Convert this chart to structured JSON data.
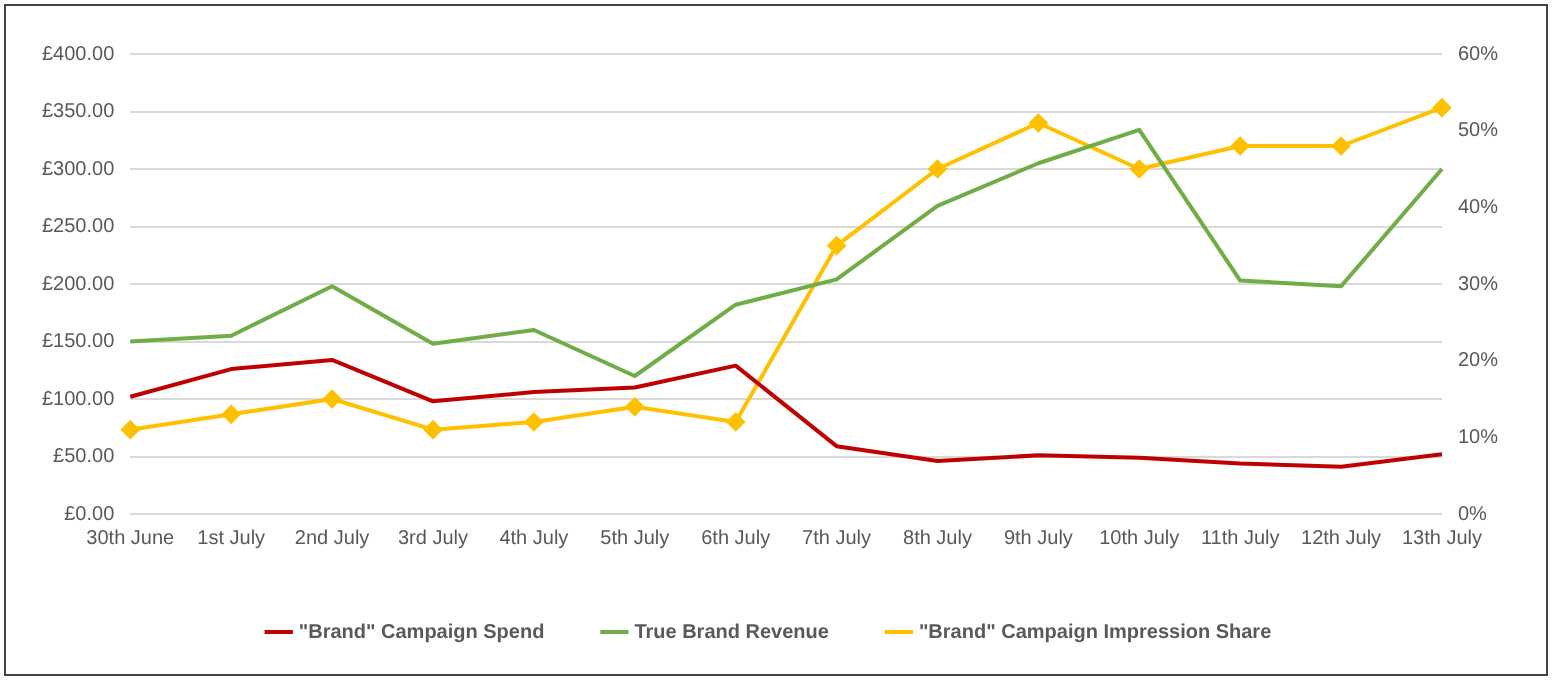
{
  "chart_data": {
    "type": "line",
    "categories": [
      "30th June",
      "1st July",
      "2nd July",
      "3rd July",
      "4th July",
      "5th July",
      "6th July",
      "7th July",
      "8th July",
      "9th July",
      "10th July",
      "11th July",
      "12th July",
      "13th July"
    ],
    "series": [
      {
        "name": "\"Brand\" Campaign Spend",
        "color": "#c00000",
        "marker": "none",
        "values": [
          102,
          126,
          134,
          98,
          106,
          110,
          129,
          59,
          46,
          51,
          49,
          44,
          41,
          52
        ]
      },
      {
        "name": "True Brand Revenue",
        "color": "#70ad47",
        "marker": "none",
        "values": [
          150,
          155,
          198,
          148,
          160,
          120,
          182,
          204,
          268,
          305,
          334,
          203,
          198,
          300
        ]
      },
      {
        "name": "\"Brand\" Campaign Impression Share",
        "color": "#ffc000",
        "marker": "diamond",
        "axis": "y2",
        "values": [
          11,
          13,
          15,
          11,
          12,
          14,
          12,
          35,
          45,
          51,
          45,
          48,
          48,
          53
        ]
      }
    ],
    "ylim": [
      0,
      400
    ],
    "yticks": [
      {
        "value": 0,
        "label": "£0.00"
      },
      {
        "value": 50,
        "label": "£50.00"
      },
      {
        "value": 100,
        "label": "£100.00"
      },
      {
        "value": 150,
        "label": "£150.00"
      },
      {
        "value": 200,
        "label": "£200.00"
      },
      {
        "value": 250,
        "label": "£250.00"
      },
      {
        "value": 300,
        "label": "£300.00"
      },
      {
        "value": 350,
        "label": "£350.00"
      },
      {
        "value": 400,
        "label": "£400.00"
      }
    ],
    "y2lim": [
      0,
      60
    ],
    "y2ticks": [
      {
        "value": 0,
        "label": "0%"
      },
      {
        "value": 10,
        "label": "10%"
      },
      {
        "value": 20,
        "label": "20%"
      },
      {
        "value": 30,
        "label": "30%"
      },
      {
        "value": 40,
        "label": "40%"
      },
      {
        "value": 50,
        "label": "50%"
      },
      {
        "value": 60,
        "label": "60%"
      }
    ],
    "grid": "y",
    "legend": "bottom",
    "line_style": "solid"
  }
}
